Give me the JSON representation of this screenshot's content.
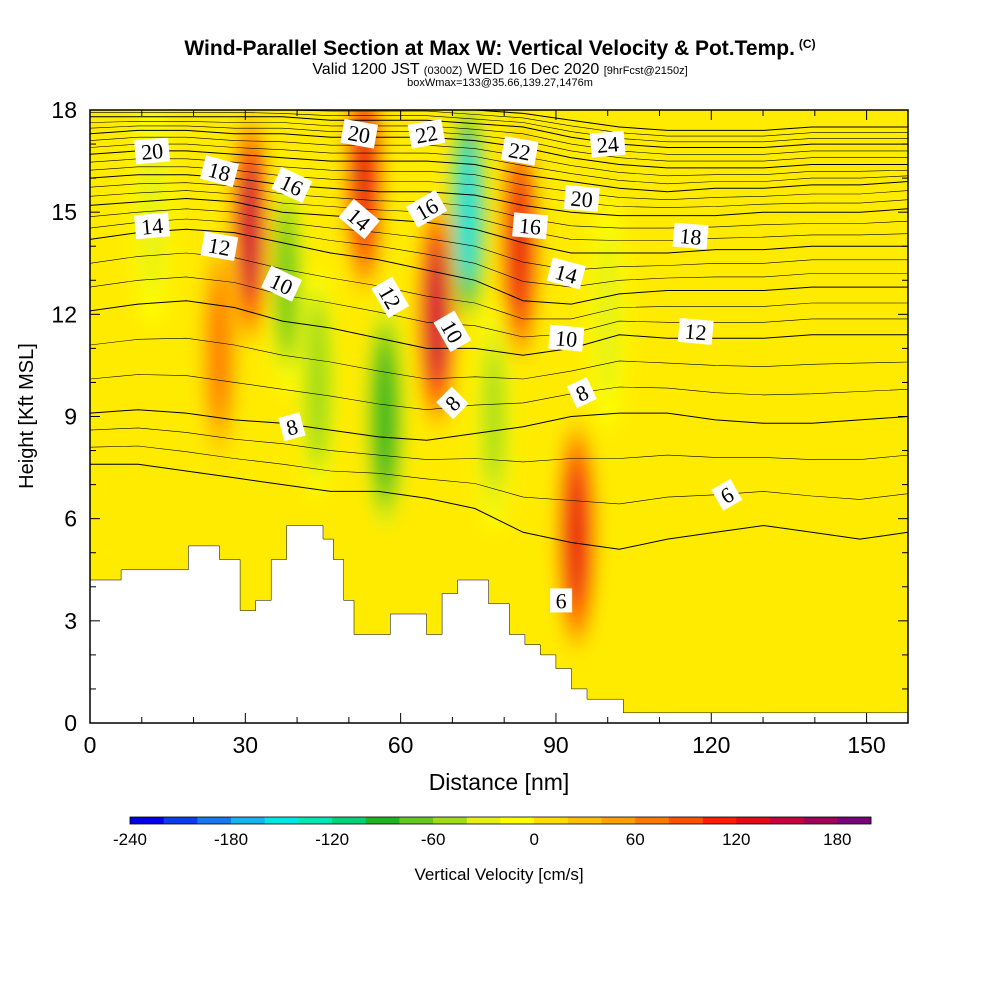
{
  "header": {
    "title": "Wind-Parallel Section at Max W: Vertical Velocity & Pot.Temp.",
    "copyright": "(C)",
    "valid_prefix": "Valid 1200 JST",
    "valid_utc": "(0300Z)",
    "valid_date": "WED 16 Dec 2020",
    "forecast": "[9hrFcst@2150z]",
    "box_info": "boxWmax=133@35.66,139.27,1476m"
  },
  "chart_data": {
    "type": "heatmap",
    "xlabel": "Distance [nm]",
    "ylabel": "Height [Kft MSL]",
    "xlim": [
      0,
      158
    ],
    "ylim": [
      0,
      18
    ],
    "x_ticks": [
      0,
      30,
      60,
      90,
      120,
      150
    ],
    "y_ticks": [
      0,
      3,
      6,
      9,
      12,
      15,
      18
    ],
    "colorbar": {
      "label": "Vertical Velocity [cm/s]",
      "min": -240,
      "max": 200,
      "step": 20,
      "tick_labels": [
        -240,
        -180,
        -120,
        -60,
        0,
        60,
        120,
        180
      ],
      "colors": [
        "#0000e8",
        "#0a3df0",
        "#1478f0",
        "#14b4f0",
        "#00e6e6",
        "#00e6b4",
        "#00d278",
        "#1eb41e",
        "#64c81e",
        "#a0dc14",
        "#e6f014",
        "#ffff00",
        "#ffdc00",
        "#ffbe00",
        "#ffa000",
        "#ff7800",
        "#ff5000",
        "#ff1e00",
        "#e60a14",
        "#c8003c",
        "#a0005a",
        "#780078"
      ]
    },
    "w_features": [
      {
        "x": 31,
        "kft": 14.5,
        "value": 140
      },
      {
        "x": 53,
        "kft": 16,
        "value": 130
      },
      {
        "x": 57,
        "kft": 9,
        "value": -90
      },
      {
        "x": 67,
        "kft": 12,
        "value": 150
      },
      {
        "x": 73,
        "kft": 15,
        "value": -160
      },
      {
        "x": 83,
        "kft": 14,
        "value": 120
      },
      {
        "x": 94,
        "kft": 5.5,
        "value": 133
      },
      {
        "x": 38,
        "kft": 13,
        "value": -70
      },
      {
        "x": 44,
        "kft": 10,
        "value": -60
      },
      {
        "x": 25,
        "kft": 11,
        "value": 60
      },
      {
        "x": 78,
        "kft": 9,
        "value": -50
      },
      {
        "x": 100,
        "kft": 12,
        "value": -40
      },
      {
        "x": 12,
        "kft": 15,
        "value": -30
      }
    ],
    "theta_contours": [
      {
        "label": "6",
        "kft": [
          7.6,
          7.6,
          7.4,
          7.2,
          7.0,
          6.8,
          6.8,
          6.6,
          6.3,
          5.6,
          5.3,
          5.1,
          5.4,
          5.6,
          5.8,
          5.6,
          5.4,
          5.6
        ]
      },
      {
        "label": "8",
        "kft": [
          9.1,
          9.2,
          9.1,
          8.9,
          8.8,
          8.6,
          8.4,
          8.3,
          8.5,
          8.7,
          9.0,
          9.1,
          9.1,
          8.9,
          8.8,
          8.8,
          8.9,
          9.0
        ]
      },
      {
        "label": "10",
        "kft": [
          12.1,
          12.3,
          12.4,
          12.2,
          11.8,
          11.6,
          11.3,
          11.0,
          11.0,
          10.8,
          11.0,
          11.4,
          11.3,
          11.3,
          11.3,
          11.4,
          11.4,
          11.4
        ]
      },
      {
        "label": "12",
        "kft": [
          14.2,
          14.4,
          14.5,
          14.4,
          14.1,
          13.8,
          13.6,
          13.3,
          13.0,
          12.4,
          12.3,
          12.6,
          12.7,
          12.7,
          12.7,
          12.8,
          12.8,
          12.8
        ]
      },
      {
        "label": "14",
        "kft": [
          15.2,
          15.3,
          15.4,
          15.3,
          15.0,
          14.9,
          14.8,
          14.7,
          14.5,
          14.1,
          13.8,
          13.8,
          13.8,
          13.9,
          13.9,
          14.0,
          14.0,
          14.0
        ]
      },
      {
        "label": "16",
        "kft": [
          16.0,
          16.1,
          16.1,
          16.0,
          15.8,
          15.7,
          15.6,
          15.6,
          15.5,
          15.2,
          15.0,
          14.9,
          14.9,
          14.9,
          15.0,
          15.0,
          15.0,
          15.1
        ]
      },
      {
        "label": "18",
        "kft": [
          16.7,
          16.8,
          16.8,
          16.7,
          16.6,
          16.5,
          16.5,
          16.5,
          16.4,
          16.1,
          15.9,
          15.7,
          15.6,
          15.7,
          15.7,
          15.8,
          15.8,
          15.9
        ]
      },
      {
        "label": "20",
        "kft": [
          17.3,
          17.4,
          17.4,
          17.3,
          17.3,
          17.2,
          17.2,
          17.2,
          17.1,
          16.9,
          16.6,
          16.4,
          16.3,
          16.3,
          16.3,
          16.4,
          16.4,
          16.4
        ]
      },
      {
        "label": "22",
        "kft": [
          17.8,
          17.8,
          17.8,
          17.8,
          17.8,
          17.7,
          17.7,
          17.7,
          17.6,
          17.5,
          17.2,
          17.0,
          16.9,
          16.9,
          16.9,
          17.0,
          17.0,
          17.0
        ]
      },
      {
        "label": "24",
        "kft": [
          18.2,
          18.2,
          18.2,
          18.2,
          18.1,
          18.1,
          18.1,
          18.1,
          18.0,
          17.9,
          17.7,
          17.5,
          17.4,
          17.4,
          17.4,
          17.5,
          17.5,
          17.5
        ]
      }
    ],
    "contour_labels": [
      {
        "text": "20",
        "x": 12,
        "kft": 16.8,
        "angle": -5
      },
      {
        "text": "18",
        "x": 25,
        "kft": 16.2,
        "angle": 15
      },
      {
        "text": "16",
        "x": 39,
        "kft": 15.8,
        "angle": 25
      },
      {
        "text": "14",
        "x": 12,
        "kft": 14.6,
        "angle": -5
      },
      {
        "text": "12",
        "x": 25,
        "kft": 14.0,
        "angle": 10
      },
      {
        "text": "10",
        "x": 37,
        "kft": 12.9,
        "angle": 25
      },
      {
        "text": "8",
        "x": 39,
        "kft": 8.7,
        "angle": -15
      },
      {
        "text": "20",
        "x": 52,
        "kft": 17.3,
        "angle": 10
      },
      {
        "text": "14",
        "x": 52,
        "kft": 14.8,
        "angle": 40
      },
      {
        "text": "12",
        "x": 58,
        "kft": 12.5,
        "angle": 60
      },
      {
        "text": "22",
        "x": 65,
        "kft": 17.3,
        "angle": -10
      },
      {
        "text": "16",
        "x": 65,
        "kft": 15.1,
        "angle": -30
      },
      {
        "text": "10",
        "x": 70,
        "kft": 11.5,
        "angle": 60
      },
      {
        "text": "8",
        "x": 70,
        "kft": 9.4,
        "angle": -45
      },
      {
        "text": "22",
        "x": 83,
        "kft": 16.8,
        "angle": 10
      },
      {
        "text": "16",
        "x": 85,
        "kft": 14.6,
        "angle": 5
      },
      {
        "text": "24",
        "x": 100,
        "kft": 17.0,
        "angle": -5
      },
      {
        "text": "20",
        "x": 95,
        "kft": 15.4,
        "angle": 5
      },
      {
        "text": "14",
        "x": 92,
        "kft": 13.2,
        "angle": 15
      },
      {
        "text": "10",
        "x": 92,
        "kft": 11.3,
        "angle": 5
      },
      {
        "text": "8",
        "x": 95,
        "kft": 9.7,
        "angle": -25
      },
      {
        "text": "18",
        "x": 116,
        "kft": 14.3,
        "angle": 5
      },
      {
        "text": "12",
        "x": 117,
        "kft": 11.5,
        "angle": 5
      },
      {
        "text": "6",
        "x": 123,
        "kft": 6.7,
        "angle": -30
      },
      {
        "text": "6",
        "x": 91,
        "kft": 3.6,
        "angle": 0
      }
    ],
    "terrain_kft": [
      [
        0,
        4.2
      ],
      [
        6,
        4.2
      ],
      [
        6,
        4.5
      ],
      [
        19,
        4.5
      ],
      [
        19,
        5.2
      ],
      [
        25,
        5.2
      ],
      [
        25,
        4.8
      ],
      [
        29,
        4.8
      ],
      [
        29,
        3.3
      ],
      [
        32,
        3.3
      ],
      [
        32,
        3.6
      ],
      [
        35,
        3.6
      ],
      [
        35,
        4.8
      ],
      [
        38,
        4.8
      ],
      [
        38,
        5.8
      ],
      [
        45,
        5.8
      ],
      [
        45,
        5.4
      ],
      [
        47,
        5.4
      ],
      [
        47,
        4.8
      ],
      [
        49,
        4.8
      ],
      [
        49,
        3.6
      ],
      [
        51,
        3.6
      ],
      [
        51,
        2.6
      ],
      [
        58,
        2.6
      ],
      [
        58,
        3.2
      ],
      [
        65,
        3.2
      ],
      [
        65,
        2.6
      ],
      [
        68,
        2.6
      ],
      [
        68,
        3.8
      ],
      [
        71,
        3.8
      ],
      [
        71,
        4.2
      ],
      [
        77,
        4.2
      ],
      [
        77,
        3.5
      ],
      [
        81,
        3.5
      ],
      [
        81,
        2.6
      ],
      [
        84,
        2.6
      ],
      [
        84,
        2.3
      ],
      [
        87,
        2.3
      ],
      [
        87,
        2.0
      ],
      [
        90,
        2.0
      ],
      [
        90,
        1.6
      ],
      [
        93,
        1.6
      ],
      [
        93,
        1.0
      ],
      [
        96,
        1.0
      ],
      [
        96,
        0.7
      ],
      [
        103,
        0.7
      ],
      [
        103,
        0.3
      ],
      [
        158,
        0.3
      ]
    ]
  }
}
